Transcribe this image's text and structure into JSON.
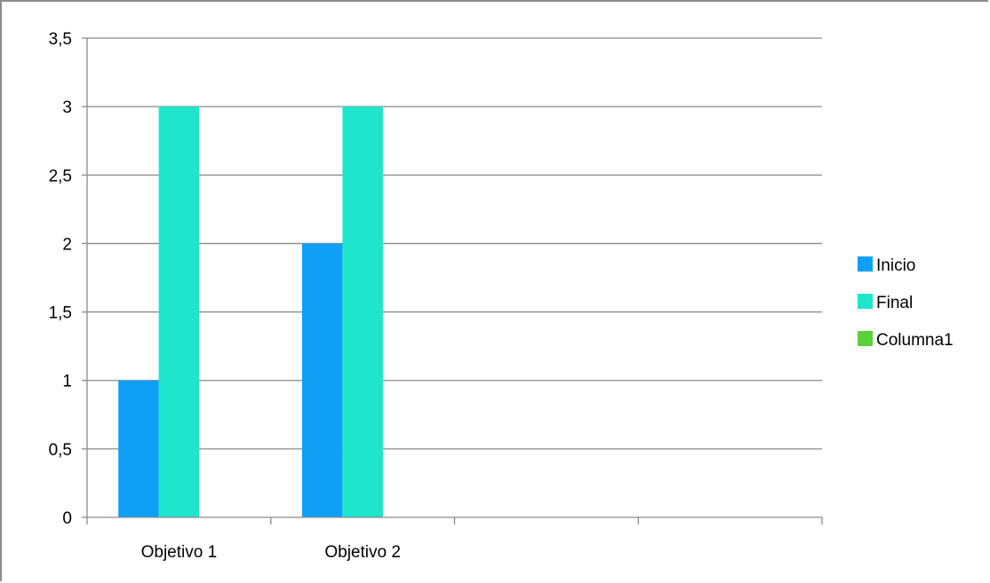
{
  "chart_data": {
    "type": "bar",
    "categories": [
      "Objetivo 1",
      "Objetivo 2",
      "",
      ""
    ],
    "series": [
      {
        "name": "Inicio",
        "values": [
          1,
          2,
          null,
          null
        ],
        "color": "#0fa0f6"
      },
      {
        "name": "Final",
        "values": [
          3,
          3,
          null,
          null
        ],
        "color": "#1de6cc"
      },
      {
        "name": "Columna1",
        "values": [
          null,
          null,
          null,
          null
        ],
        "color": "#5bd23a"
      }
    ],
    "ylim": [
      0,
      3.5
    ],
    "yticks": [
      "0",
      "0,5",
      "1",
      "1,5",
      "2",
      "2,5",
      "3",
      "3,5"
    ],
    "grid": true,
    "legend_position": "right",
    "title": "",
    "xlabel": "",
    "ylabel": ""
  }
}
